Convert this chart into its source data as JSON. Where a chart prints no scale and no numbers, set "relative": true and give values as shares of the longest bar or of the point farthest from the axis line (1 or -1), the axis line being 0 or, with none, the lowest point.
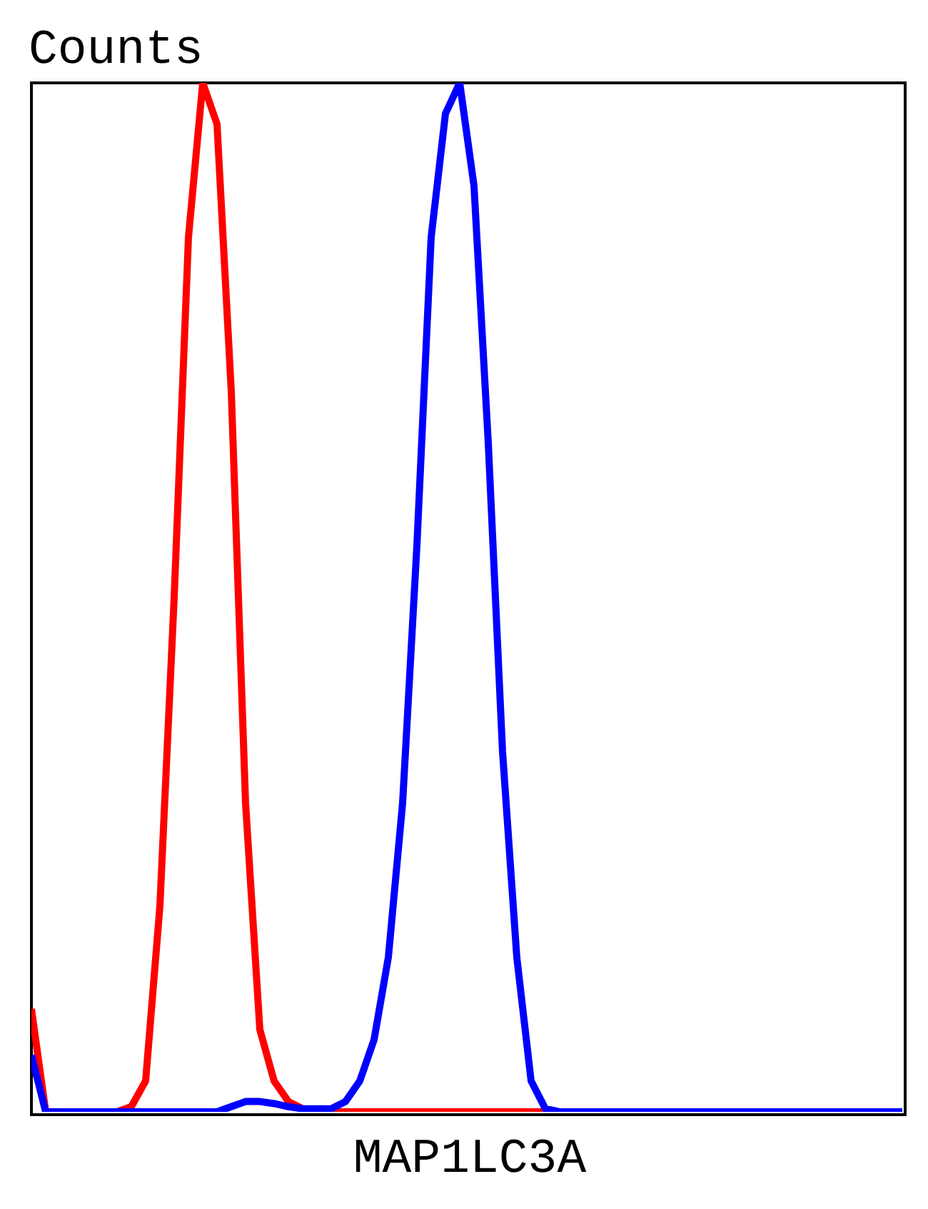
{
  "chart_data": {
    "type": "line",
    "relative": true,
    "ylabel": "Counts",
    "xlabel": "MAP1LC3A",
    "marker": "none",
    "line_style": "solid",
    "grid": false,
    "legend": false,
    "tick_labels": false,
    "categories": [
      null,
      null,
      null,
      null,
      null,
      null,
      null,
      null,
      null,
      null,
      null,
      null,
      null,
      null,
      null,
      null,
      null,
      null,
      null,
      null,
      null,
      null,
      null,
      null,
      null,
      null,
      null,
      null,
      null,
      null,
      null,
      null,
      null,
      null,
      null,
      null,
      null,
      null,
      null,
      null,
      null,
      null,
      null,
      null,
      null,
      null,
      null,
      null,
      null,
      null,
      null,
      null,
      null,
      null,
      null,
      null,
      null,
      null,
      null,
      null,
      null,
      null
    ],
    "series": [
      {
        "color": "#ff0000",
        "values": [
          0.1,
          0,
          0,
          0,
          0,
          0,
          0,
          0.005,
          0.03,
          0.2,
          0.5,
          0.85,
          1,
          0.96,
          0.7,
          0.3,
          0.08,
          0.03,
          0.01,
          0.003,
          0,
          0,
          0,
          0,
          0,
          0,
          0,
          0,
          0,
          0,
          0,
          0,
          0,
          0,
          0,
          0,
          0,
          0,
          null,
          null,
          null,
          null,
          null,
          null,
          null,
          null,
          null,
          null,
          null,
          null,
          null,
          null,
          null,
          null,
          null,
          null,
          null,
          null,
          null,
          null,
          null,
          null
        ]
      },
      {
        "color": "#0000ff",
        "values": [
          0.055,
          0,
          0,
          0,
          0,
          0,
          0,
          0,
          0,
          0,
          0,
          0,
          0,
          0,
          0.005,
          0.01,
          0.01,
          0.008,
          0.005,
          0.003,
          0.003,
          0.003,
          0.01,
          0.03,
          0.07,
          0.15,
          0.3,
          0.55,
          0.85,
          0.97,
          1,
          0.9,
          0.65,
          0.35,
          0.15,
          0.03,
          0.003,
          0,
          0,
          0,
          0,
          0,
          0,
          0,
          0,
          0,
          0,
          0,
          0,
          0,
          0,
          0,
          0,
          0,
          0,
          0,
          0,
          0,
          0,
          0,
          0,
          0
        ]
      }
    ]
  }
}
